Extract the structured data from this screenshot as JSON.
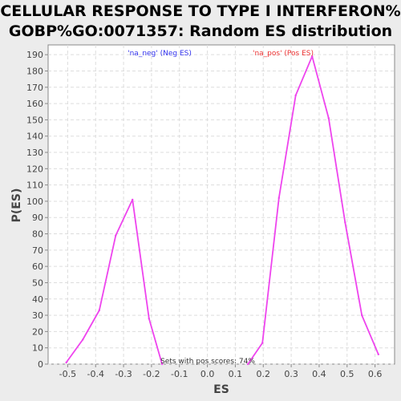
{
  "chart_data": {
    "type": "line",
    "title_line1": "CELLULAR RESPONSE TO TYPE I INTERFERON%",
    "title_line2": "GOBP%GO:0071357: Random ES distribution",
    "xlabel": "ES",
    "ylabel": "P(ES)",
    "xlim": [
      -0.57,
      0.67
    ],
    "ylim": [
      0,
      196
    ],
    "x_ticks": [
      "-0.5",
      "-0.4",
      "-0.3",
      "-0.2",
      "-0.1",
      "0.0",
      "0.1",
      "0.2",
      "0.3",
      "0.4",
      "0.5",
      "0.6"
    ],
    "x_tick_values": [
      -0.5,
      -0.4,
      -0.3,
      -0.2,
      -0.1,
      0.0,
      0.1,
      0.2,
      0.3,
      0.4,
      0.5,
      0.6
    ],
    "y_ticks": [
      "0",
      "10",
      "20",
      "30",
      "40",
      "50",
      "60",
      "70",
      "80",
      "90",
      "100",
      "110",
      "120",
      "130",
      "140",
      "150",
      "160",
      "170",
      "180",
      "190"
    ],
    "y_tick_values": [
      0,
      10,
      20,
      30,
      40,
      50,
      60,
      70,
      80,
      90,
      100,
      110,
      120,
      130,
      140,
      150,
      160,
      170,
      180,
      190
    ],
    "grid": true,
    "series": [
      {
        "name": "'na_neg' (Neg ES)",
        "color": "#ee44ee",
        "x": [
          -0.505,
          -0.446,
          -0.387,
          -0.328,
          -0.268,
          -0.209,
          -0.162
        ],
        "y": [
          1,
          15,
          33,
          79,
          101,
          28,
          0
        ]
      },
      {
        "name": "'na_pos' (Pos ES)",
        "color": "#ee44ee",
        "x": [
          0.145,
          0.197,
          0.256,
          0.316,
          0.375,
          0.434,
          0.493,
          0.553,
          0.612
        ],
        "y": [
          0,
          13,
          102,
          165,
          189,
          151,
          87,
          30,
          6
        ]
      }
    ],
    "legend": [
      {
        "label": "'na_neg' (Neg ES)",
        "color": "#3333ee"
      },
      {
        "label": "'na_pos' (Pos ES)",
        "color": "#ee3333"
      }
    ],
    "annotation": "Sets with pos scores: 74%"
  }
}
